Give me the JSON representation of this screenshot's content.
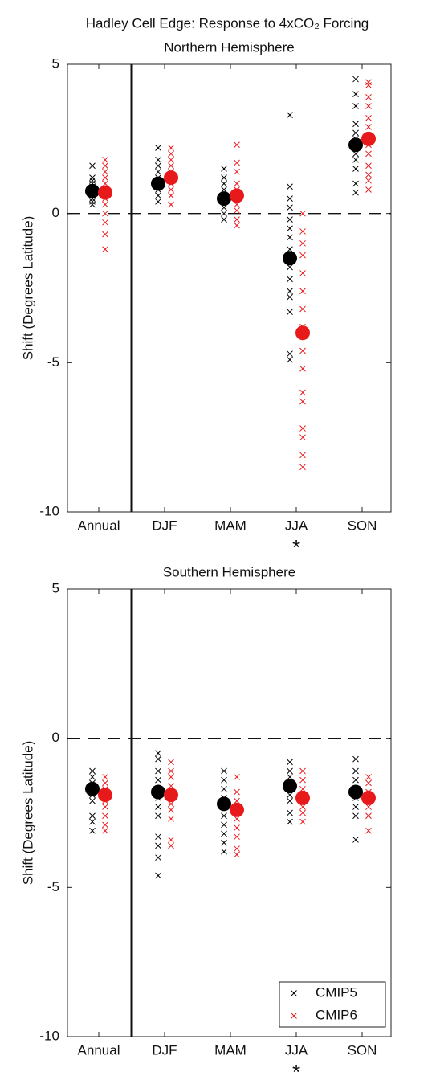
{
  "title": "Hadley Cell Edge: Response to 4xCO₂ Forcing",
  "chart_data": [
    {
      "type": "strip",
      "title": "Northern Hemisphere",
      "y_label": "Shift (Degrees Latitude)",
      "categories": [
        "Annual",
        "DJF",
        "MAM",
        "JJA",
        "SON"
      ],
      "ylim": [
        -10,
        5
      ],
      "yticks": [
        -10,
        -5,
        0,
        5
      ],
      "annotations": [
        {
          "text": "*",
          "x": "JJA"
        }
      ],
      "series": [
        {
          "name": "CMIP5",
          "color": "#000000",
          "values": [
            0.75,
            1.0,
            0.5,
            -1.5,
            2.3
          ],
          "members": [
            [
              1.6,
              1.2,
              1.1,
              1.0,
              0.9,
              0.8,
              0.7,
              0.6,
              0.5,
              0.4,
              0.3
            ],
            [
              2.2,
              1.8,
              1.6,
              1.4,
              1.2,
              1.0,
              0.8,
              0.6,
              0.4
            ],
            [
              1.5,
              1.2,
              1.0,
              0.8,
              0.6,
              0.4,
              0.2,
              0.0,
              -0.2
            ],
            [
              3.3,
              0.9,
              0.5,
              0.2,
              -0.2,
              -0.5,
              -0.8,
              -1.2,
              -1.8,
              -2.2,
              -2.6,
              -2.8,
              -3.3,
              -4.7,
              -4.9
            ],
            [
              4.5,
              4.0,
              3.6,
              3.0,
              2.7,
              2.5,
              2.2,
              2.0,
              1.8,
              1.5,
              1.0,
              0.7
            ]
          ]
        },
        {
          "name": "CMIP6",
          "color": "#e8191b",
          "values": [
            0.7,
            1.2,
            0.6,
            -4.0,
            2.5
          ],
          "members": [
            [
              1.8,
              1.6,
              1.4,
              1.2,
              1.0,
              0.8,
              0.5,
              0.3,
              0.0,
              -0.3,
              -0.7,
              -1.2
            ],
            [
              2.2,
              2.0,
              1.8,
              1.6,
              1.4,
              1.2,
              1.0,
              0.8,
              0.6,
              0.3
            ],
            [
              2.3,
              1.7,
              1.4,
              1.0,
              0.8,
              0.6,
              0.3,
              0.1,
              -0.2,
              -0.4
            ],
            [
              0.0,
              -0.6,
              -1.0,
              -1.4,
              -2.0,
              -2.6,
              -3.2,
              -3.8,
              -4.6,
              -5.2,
              -6.0,
              -6.3,
              -7.2,
              -7.5,
              -8.1,
              -8.5
            ],
            [
              4.4,
              4.3,
              3.9,
              3.6,
              3.2,
              2.9,
              2.6,
              2.3,
              2.0,
              1.6,
              1.3,
              1.1,
              0.8
            ]
          ]
        }
      ]
    },
    {
      "type": "strip",
      "title": "Southern Hemisphere",
      "y_label": "Shift (Degrees Latitude)",
      "categories": [
        "Annual",
        "DJF",
        "MAM",
        "JJA",
        "SON"
      ],
      "ylim": [
        -10,
        5
      ],
      "yticks": [
        -10,
        -5,
        0,
        5
      ],
      "annotations": [
        {
          "text": "*",
          "x": "JJA"
        }
      ],
      "legend": "lower right",
      "series": [
        {
          "name": "CMIP5",
          "color": "#000000",
          "values": [
            -1.7,
            -1.8,
            -2.2,
            -1.6,
            -1.8
          ],
          "members": [
            [
              -1.1,
              -1.3,
              -1.5,
              -1.6,
              -1.7,
              -1.9,
              -2.1,
              -2.6,
              -2.8,
              -3.1
            ],
            [
              -0.5,
              -0.7,
              -1.1,
              -1.4,
              -1.7,
              -2.0,
              -2.3,
              -2.6,
              -3.3,
              -3.6,
              -4.0,
              -4.6
            ],
            [
              -1.1,
              -1.4,
              -1.7,
              -2.0,
              -2.3,
              -2.6,
              -2.9,
              -3.2,
              -3.5,
              -3.8
            ],
            [
              -0.8,
              -1.1,
              -1.3,
              -1.6,
              -1.9,
              -2.1,
              -2.5,
              -2.8
            ],
            [
              -0.7,
              -1.1,
              -1.4,
              -1.7,
              -2.0,
              -2.3,
              -2.6,
              -3.4
            ]
          ]
        },
        {
          "name": "CMIP6",
          "color": "#e8191b",
          "values": [
            -1.9,
            -1.9,
            -2.4,
            -2.0,
            -2.0
          ],
          "members": [
            [
              -1.3,
              -1.5,
              -1.7,
              -1.9,
              -2.1,
              -2.3,
              -2.6,
              -2.9,
              -3.1
            ],
            [
              -0.8,
              -1.1,
              -1.3,
              -1.6,
              -1.9,
              -2.2,
              -2.4,
              -2.7,
              -3.4,
              -3.6
            ],
            [
              -1.3,
              -1.8,
              -2.1,
              -2.4,
              -2.7,
              -3.0,
              -3.3,
              -3.7,
              -3.9
            ],
            [
              -1.1,
              -1.4,
              -1.7,
              -2.0,
              -2.3,
              -2.5,
              -2.8
            ],
            [
              -1.3,
              -1.5,
              -1.8,
              -2.1,
              -2.3,
              -2.6,
              -3.1
            ]
          ]
        }
      ]
    }
  ]
}
